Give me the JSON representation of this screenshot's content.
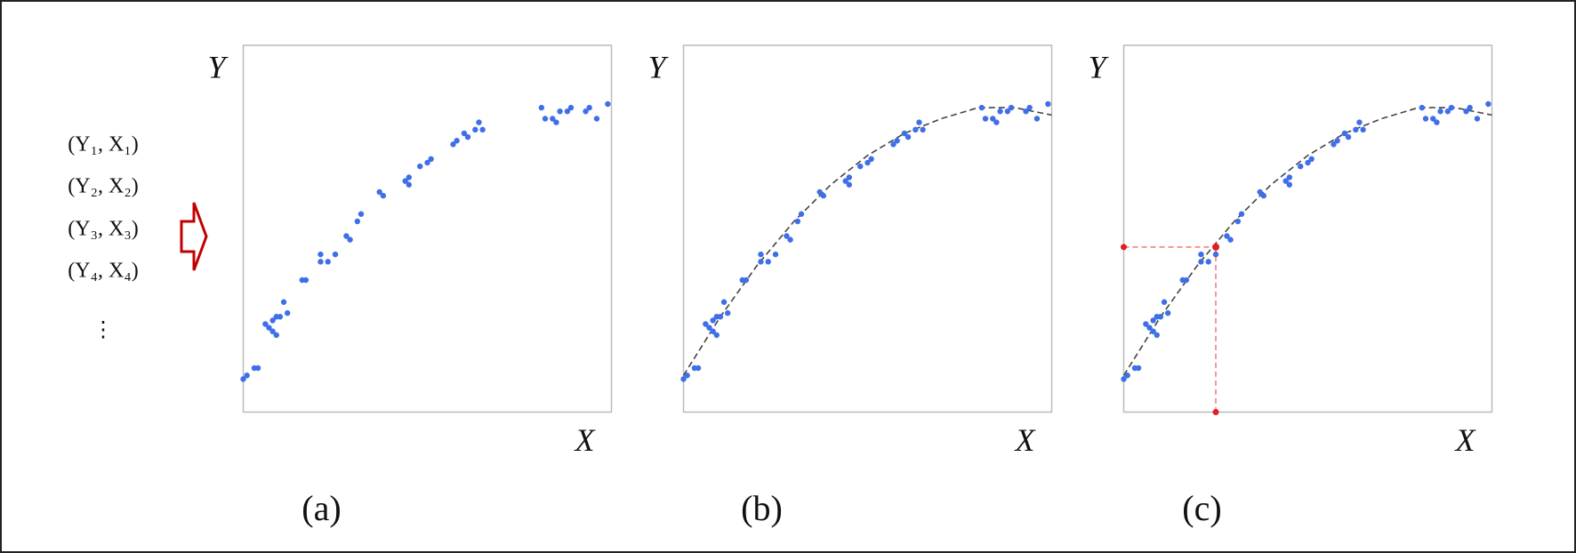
{
  "inputs": {
    "pairs": [
      "(Y₁, X₁)",
      "(Y₂, X₂)",
      "(Y₃, X₃)",
      "(Y₄, X₄)"
    ],
    "more": "⋮"
  },
  "chart_data": [
    {
      "type": "scatter",
      "panel_label": "(a)",
      "x_label": "X",
      "y_label": "Y",
      "xlim": [
        0,
        1
      ],
      "ylim": [
        0,
        1
      ],
      "color": "#3f6fe8",
      "x": [
        0.0,
        0.01,
        0.03,
        0.04,
        0.06,
        0.08,
        0.08,
        0.09,
        0.07,
        0.09,
        0.1,
        0.11,
        0.12,
        0.16,
        0.17,
        0.21,
        0.21,
        0.23,
        0.25,
        0.28,
        0.29,
        0.31,
        0.32,
        0.37,
        0.38,
        0.44,
        0.45,
        0.45,
        0.48,
        0.5,
        0.51,
        0.57,
        0.58,
        0.6,
        0.61,
        0.63,
        0.64,
        0.65,
        0.81,
        0.82,
        0.84,
        0.85,
        0.86,
        0.88,
        0.89,
        0.93,
        0.94,
        0.96,
        0.99
      ],
      "values": [
        0.09,
        0.1,
        0.12,
        0.12,
        0.24,
        0.25,
        0.22,
        0.26,
        0.23,
        0.21,
        0.26,
        0.3,
        0.27,
        0.36,
        0.36,
        0.43,
        0.41,
        0.41,
        0.43,
        0.48,
        0.47,
        0.52,
        0.54,
        0.6,
        0.59,
        0.63,
        0.64,
        0.62,
        0.67,
        0.68,
        0.69,
        0.73,
        0.74,
        0.76,
        0.75,
        0.77,
        0.79,
        0.77,
        0.83,
        0.8,
        0.8,
        0.79,
        0.82,
        0.82,
        0.83,
        0.82,
        0.83,
        0.8,
        0.84
      ]
    },
    {
      "type": "scatter",
      "panel_label": "(b)",
      "x_label": "X",
      "y_label": "Y",
      "xlim": [
        0,
        1
      ],
      "ylim": [
        0,
        1
      ],
      "color": "#3f6fe8",
      "x": [
        0.0,
        0.01,
        0.03,
        0.04,
        0.06,
        0.08,
        0.08,
        0.09,
        0.07,
        0.09,
        0.1,
        0.11,
        0.12,
        0.16,
        0.17,
        0.21,
        0.21,
        0.23,
        0.25,
        0.28,
        0.29,
        0.31,
        0.32,
        0.37,
        0.38,
        0.44,
        0.45,
        0.45,
        0.48,
        0.5,
        0.51,
        0.57,
        0.58,
        0.6,
        0.61,
        0.63,
        0.64,
        0.65,
        0.81,
        0.82,
        0.84,
        0.85,
        0.86,
        0.88,
        0.89,
        0.93,
        0.94,
        0.96,
        0.99
      ],
      "values": [
        0.09,
        0.1,
        0.12,
        0.12,
        0.24,
        0.25,
        0.22,
        0.26,
        0.23,
        0.21,
        0.26,
        0.3,
        0.27,
        0.36,
        0.36,
        0.43,
        0.41,
        0.41,
        0.43,
        0.48,
        0.47,
        0.52,
        0.54,
        0.6,
        0.59,
        0.63,
        0.64,
        0.62,
        0.67,
        0.68,
        0.69,
        0.73,
        0.74,
        0.76,
        0.75,
        0.77,
        0.79,
        0.77,
        0.83,
        0.8,
        0.8,
        0.79,
        0.82,
        0.82,
        0.83,
        0.82,
        0.83,
        0.8,
        0.84
      ],
      "fit": {
        "x": [
          0,
          0.1,
          0.2,
          0.3,
          0.4,
          0.5,
          0.6,
          0.7,
          0.8,
          0.9,
          1
        ],
        "values": [
          0.1,
          0.26,
          0.4,
          0.52,
          0.62,
          0.7,
          0.76,
          0.8,
          0.83,
          0.83,
          0.81
        ]
      }
    },
    {
      "type": "scatter",
      "panel_label": "(c)",
      "x_label": "X",
      "y_label": "Y",
      "xlim": [
        0,
        1
      ],
      "ylim": [
        0,
        1
      ],
      "color": "#3f6fe8",
      "x": [
        0.0,
        0.01,
        0.03,
        0.04,
        0.06,
        0.08,
        0.08,
        0.09,
        0.07,
        0.09,
        0.1,
        0.11,
        0.12,
        0.16,
        0.17,
        0.21,
        0.21,
        0.23,
        0.25,
        0.28,
        0.29,
        0.31,
        0.32,
        0.37,
        0.38,
        0.44,
        0.45,
        0.45,
        0.48,
        0.5,
        0.51,
        0.57,
        0.58,
        0.6,
        0.61,
        0.63,
        0.64,
        0.65,
        0.81,
        0.82,
        0.84,
        0.85,
        0.86,
        0.88,
        0.89,
        0.93,
        0.94,
        0.96,
        0.99
      ],
      "values": [
        0.09,
        0.1,
        0.12,
        0.12,
        0.24,
        0.25,
        0.22,
        0.26,
        0.23,
        0.21,
        0.26,
        0.3,
        0.27,
        0.36,
        0.36,
        0.43,
        0.41,
        0.41,
        0.43,
        0.48,
        0.47,
        0.52,
        0.54,
        0.6,
        0.59,
        0.63,
        0.64,
        0.62,
        0.67,
        0.68,
        0.69,
        0.73,
        0.74,
        0.76,
        0.75,
        0.77,
        0.79,
        0.77,
        0.83,
        0.8,
        0.8,
        0.79,
        0.82,
        0.82,
        0.83,
        0.82,
        0.83,
        0.8,
        0.84
      ],
      "fit": {
        "x": [
          0,
          0.1,
          0.2,
          0.3,
          0.4,
          0.5,
          0.6,
          0.7,
          0.8,
          0.9,
          1
        ],
        "values": [
          0.1,
          0.26,
          0.4,
          0.52,
          0.62,
          0.7,
          0.76,
          0.8,
          0.83,
          0.83,
          0.81
        ]
      },
      "query": {
        "x": 0.25,
        "y": 0.45,
        "color": "#e02020"
      }
    }
  ]
}
